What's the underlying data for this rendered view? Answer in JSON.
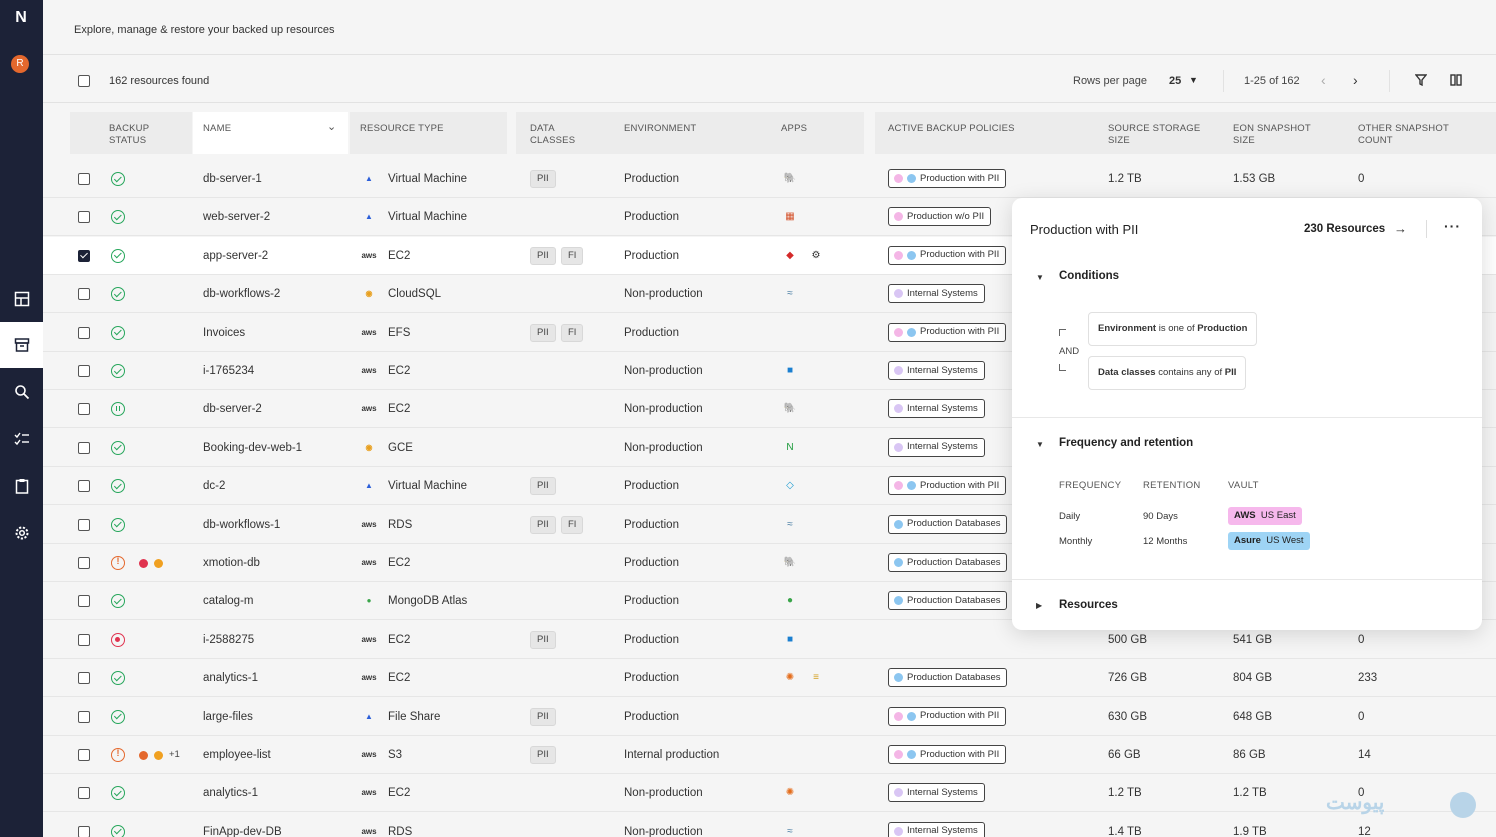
{
  "app": {
    "logo_text": "N",
    "avatar_initial": "R",
    "subtitle": "Explore, manage & restore your backed up resources"
  },
  "sidebar": {
    "items": [
      {
        "icon": "dashboard-icon"
      },
      {
        "icon": "archive-icon",
        "active": true
      },
      {
        "icon": "search-icon"
      },
      {
        "icon": "checklist-icon"
      },
      {
        "icon": "clipboard-icon"
      },
      {
        "icon": "gear-icon"
      }
    ]
  },
  "toolbar": {
    "count_label": "162 resources found",
    "rows_per_page_label": "Rows per page",
    "rows_per_page_value": "25",
    "range_label": "1-25 of 162",
    "prev_icon": "‹",
    "next_icon": "›"
  },
  "columns": {
    "backup_status": "BACKUP STATUS",
    "name": "NAME",
    "resource_type": "RESOURCE TYPE",
    "data_classes": "DATA CLASSES",
    "environment": "ENVIRONMENT",
    "apps": "APPS",
    "active_backup_policies": "ACTIVE BACKUP POLICIES",
    "source_storage_size": "SOURCE STORAGE SIZE",
    "eon_snapshot_size": "EON SNAPSHOT SIZE",
    "other_snapshot_count": "OTHER SNAPSHOT COUNT"
  },
  "rows": [
    {
      "status": "ok",
      "name": "db-server-1",
      "type_icon": "vm-icon",
      "type": "Virtual Machine",
      "classes": [
        "PII"
      ],
      "env": "Production",
      "apps": [
        "postgres-icon"
      ],
      "policy": "Production with PII",
      "policy_dots": [
        "#f4b6e6",
        "#8cc6f0"
      ],
      "src": "1.2 TB",
      "eon": "1.53 GB",
      "other": "0"
    },
    {
      "status": "ok",
      "name": "web-server-2",
      "type_icon": "vm-icon",
      "type": "Virtual Machine",
      "classes": [],
      "env": "Production",
      "apps": [
        "iis-icon"
      ],
      "policy": "Production w/o PII",
      "policy_dots": [
        "#f4b6e6"
      ],
      "src": "",
      "eon": "",
      "other": ""
    },
    {
      "status": "ok",
      "selected": true,
      "name": "app-server-2",
      "type_icon": "aws-icon",
      "type": "EC2",
      "classes": [
        "PII",
        "FI"
      ],
      "env": "Production",
      "apps": [
        "redis-icon",
        "kafka-icon"
      ],
      "policy": "Production with PII",
      "policy_dots": [
        "#f4b6e6",
        "#8cc6f0"
      ],
      "src": "",
      "eon": "",
      "other": ""
    },
    {
      "status": "ok",
      "name": "db-workflows-2",
      "type_icon": "gcp-icon",
      "type": "CloudSQL",
      "classes": [],
      "env": "Non-production",
      "apps": [
        "mysql-icon"
      ],
      "policy": "Internal Systems",
      "policy_dots": [
        "#d9c6f4"
      ],
      "src": "",
      "eon": "",
      "other": ""
    },
    {
      "status": "ok",
      "name": "Invoices",
      "type_icon": "aws-icon",
      "type": "EFS",
      "classes": [
        "PII",
        "FI"
      ],
      "env": "Production",
      "apps": [],
      "policy": "Production with PII",
      "policy_dots": [
        "#f4b6e6",
        "#8cc6f0"
      ],
      "src": "",
      "eon": "",
      "other": ""
    },
    {
      "status": "ok",
      "name": "i-1765234",
      "type_icon": "aws-icon",
      "type": "EC2",
      "classes": [],
      "env": "Non-production",
      "apps": [
        "sap-icon"
      ],
      "policy": "Internal Systems",
      "policy_dots": [
        "#d9c6f4"
      ],
      "src": "",
      "eon": "",
      "other": ""
    },
    {
      "status": "pause",
      "name": "db-server-2",
      "type_icon": "aws-icon",
      "type": "EC2",
      "classes": [],
      "env": "Non-production",
      "apps": [
        "postgres-icon"
      ],
      "policy": "Internal Systems",
      "policy_dots": [
        "#d9c6f4"
      ],
      "src": "",
      "eon": "",
      "other": ""
    },
    {
      "status": "ok",
      "name": "Booking-dev-web-1",
      "type_icon": "gcp-icon",
      "type": "GCE",
      "classes": [],
      "env": "Non-production",
      "apps": [
        "nginx-icon"
      ],
      "policy": "Internal Systems",
      "policy_dots": [
        "#d9c6f4"
      ],
      "src": "",
      "eon": "",
      "other": ""
    },
    {
      "status": "ok",
      "name": "dc-2",
      "type_icon": "vm-icon",
      "type": "Virtual Machine",
      "classes": [
        "PII"
      ],
      "env": "Production",
      "apps": [
        "diamond-icon"
      ],
      "policy": "Production with PII",
      "policy_dots": [
        "#f4b6e6",
        "#8cc6f0"
      ],
      "src": "",
      "eon": "",
      "other": ""
    },
    {
      "status": "ok",
      "name": "db-workflows-1",
      "type_icon": "aws-icon",
      "type": "RDS",
      "classes": [
        "PII",
        "FI"
      ],
      "env": "Production",
      "apps": [
        "mysql-icon"
      ],
      "policy": "Production Databases",
      "policy_dots": [
        "#8cc6f0"
      ],
      "src": "",
      "eon": "",
      "other": ""
    },
    {
      "status": "warn",
      "dots": [
        "#e0334f",
        "#f0a020"
      ],
      "name": "xmotion-db",
      "type_icon": "aws-icon",
      "type": "EC2",
      "classes": [],
      "env": "Production",
      "apps": [
        "postgres-icon"
      ],
      "policy": "Production Databases",
      "policy_dots": [
        "#8cc6f0"
      ],
      "src": "",
      "eon": "",
      "other": ""
    },
    {
      "status": "ok",
      "name": "catalog-m",
      "type_icon": "mongo-icon",
      "type": "MongoDB Atlas",
      "classes": [],
      "env": "Production",
      "apps": [
        "mongo-icon"
      ],
      "policy": "Production Databases",
      "policy_dots": [
        "#8cc6f0"
      ],
      "src": "",
      "eon": "",
      "other": ""
    },
    {
      "status": "err",
      "name": "i-2588275",
      "type_icon": "aws-icon",
      "type": "EC2",
      "classes": [
        "PII"
      ],
      "env": "Production",
      "apps": [
        "sap-icon"
      ],
      "policy": "",
      "policy_dots": [],
      "src": "500 GB",
      "eon": "541 GB",
      "other": "0"
    },
    {
      "status": "ok",
      "name": "analytics-1",
      "type_icon": "aws-icon",
      "type": "EC2",
      "classes": [],
      "env": "Production",
      "apps": [
        "grafana-icon",
        "elastic-icon"
      ],
      "policy": "Production Databases",
      "policy_dots": [
        "#8cc6f0"
      ],
      "src": "726 GB",
      "eon": "804 GB",
      "other": "233"
    },
    {
      "status": "ok",
      "name": "large-files",
      "type_icon": "vm-icon",
      "type": "File Share",
      "classes": [
        "PII"
      ],
      "env": "Production",
      "apps": [],
      "policy": "Production with PII",
      "policy_dots": [
        "#f4b6e6",
        "#8cc6f0"
      ],
      "src": "630 GB",
      "eon": "648 GB",
      "other": "0"
    },
    {
      "status": "warn",
      "dots": [
        "#e4682d",
        "#f0a020"
      ],
      "plus": "+1",
      "name": "employee-list",
      "type_icon": "aws-icon",
      "type": "S3",
      "classes": [
        "PII"
      ],
      "env": "Internal production",
      "apps": [],
      "policy": "Production with PII",
      "policy_dots": [
        "#f4b6e6",
        "#8cc6f0"
      ],
      "src": "66 GB",
      "eon": "86 GB",
      "other": "14"
    },
    {
      "status": "ok",
      "name": "analytics-1",
      "type_icon": "aws-icon",
      "type": "EC2",
      "classes": [],
      "env": "Non-production",
      "apps": [
        "grafana-icon"
      ],
      "policy": "Internal Systems",
      "policy_dots": [
        "#d9c6f4"
      ],
      "src": "1.2 TB",
      "eon": "1.2 TB",
      "other": "0"
    },
    {
      "status": "ok",
      "name": "FinApp-dev-DB",
      "type_icon": "aws-icon",
      "type": "RDS",
      "classes": [],
      "env": "Non-production",
      "apps": [
        "mysql-icon"
      ],
      "policy": "Internal Systems",
      "policy_dots": [
        "#d9c6f4"
      ],
      "src": "1.4 TB",
      "eon": "1.9 TB",
      "other": "12"
    }
  ],
  "popover": {
    "title": "Production with PII",
    "resources_link": "230 Resources",
    "more_icon": "···",
    "conditions_title": "Conditions",
    "and_label": "AND",
    "cond1": {
      "field": "Environment",
      "op": " is one of ",
      "value": "Production"
    },
    "cond2": {
      "field": "Data classes",
      "op": " contains any of ",
      "value": "PII"
    },
    "freq_title": "Frequency and retention",
    "freq_headers": {
      "frequency": "FREQUENCY",
      "retention": "RETENTION",
      "vault": "VAULT"
    },
    "freq_rows": [
      {
        "frequency": "Daily",
        "retention": "90 Days",
        "vault_provider": "AWS",
        "vault_region": "US East",
        "vault_color": "#f6b8ec"
      },
      {
        "frequency": "Monthly",
        "retention": "12 Months",
        "vault_provider": "Asure",
        "vault_region": "US West",
        "vault_color": "#9ed4f5"
      }
    ],
    "resources_title": "Resources"
  },
  "watermark": "پیوست"
}
